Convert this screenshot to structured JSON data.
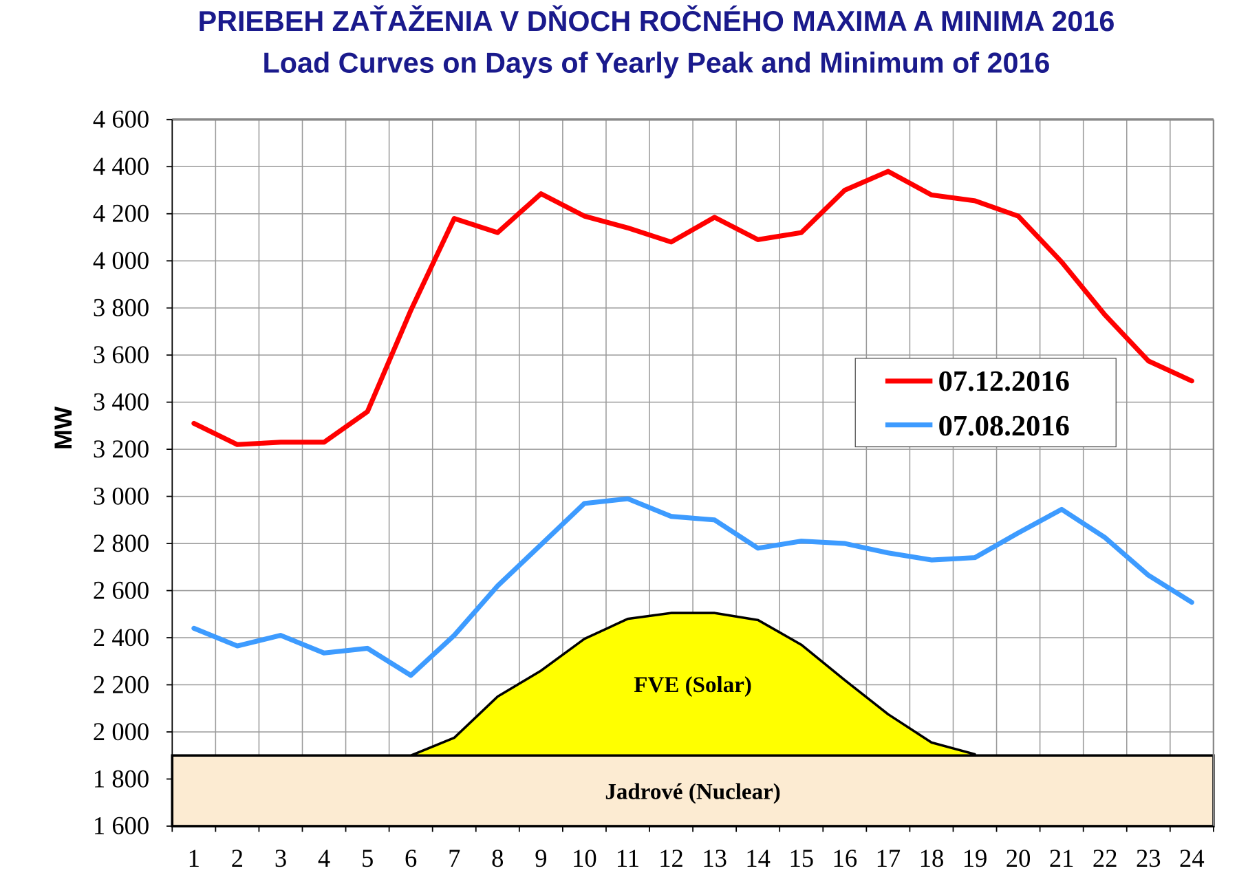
{
  "chart_data": {
    "type": "line",
    "title": "PRIEBEH ZAŤAŽENIA V DŇOCH ROČNÉHO MAXIMA A MINIMA 2016",
    "subtitle": "Load Curves on Days of Yearly Peak and Minimum of 2016",
    "xlabel": "",
    "ylabel": "MW",
    "ylim": [
      1600,
      4600
    ],
    "yticks": [
      "1 600",
      "1 800",
      "2 000",
      "2 200",
      "2 400",
      "2 600",
      "2 800",
      "3 000",
      "3 200",
      "3 400",
      "3 600",
      "3 800",
      "4 000",
      "4 200",
      "4 400",
      "4 600"
    ],
    "ytick_values": [
      1600,
      1800,
      2000,
      2200,
      2400,
      2600,
      2800,
      3000,
      3200,
      3400,
      3600,
      3800,
      4000,
      4200,
      4400,
      4600
    ],
    "categories": [
      "1",
      "2",
      "3",
      "4",
      "5",
      "6",
      "7",
      "8",
      "9",
      "10",
      "11",
      "12",
      "13",
      "14",
      "15",
      "16",
      "17",
      "18",
      "19",
      "20",
      "21",
      "22",
      "23",
      "24"
    ],
    "grid": true,
    "legend_position": "right",
    "series": [
      {
        "name": "07.12.2016",
        "color": "#ff0000",
        "values": [
          3310,
          3220,
          3230,
          3230,
          3360,
          3790,
          4180,
          4120,
          4285,
          4190,
          4140,
          4080,
          4185,
          4090,
          4120,
          4300,
          4380,
          4280,
          4255,
          4190,
          3995,
          3770,
          3575,
          3490
        ]
      },
      {
        "name": "07.08.2016",
        "color": "#3d9bff",
        "values": [
          2440,
          2365,
          2410,
          2335,
          2355,
          2240,
          2410,
          2620,
          2795,
          2970,
          2990,
          2915,
          2900,
          2780,
          2810,
          2800,
          2760,
          2730,
          2740,
          2845,
          2945,
          2825,
          2665,
          2550
        ]
      }
    ],
    "areas": [
      {
        "name": "FVE (Solar)",
        "color": "#ffff00",
        "base": 1900,
        "x": [
          6,
          7,
          8,
          9,
          10,
          11,
          12,
          13,
          14,
          15,
          16,
          17,
          18,
          19
        ],
        "values": [
          1900,
          1975,
          2150,
          2260,
          2395,
          2480,
          2505,
          2505,
          2475,
          2370,
          2220,
          2075,
          1955,
          1905
        ]
      },
      {
        "name": "Jadrové (Nuclear)",
        "color": "#fcebd2",
        "from": 1600,
        "to": 1900
      }
    ]
  }
}
